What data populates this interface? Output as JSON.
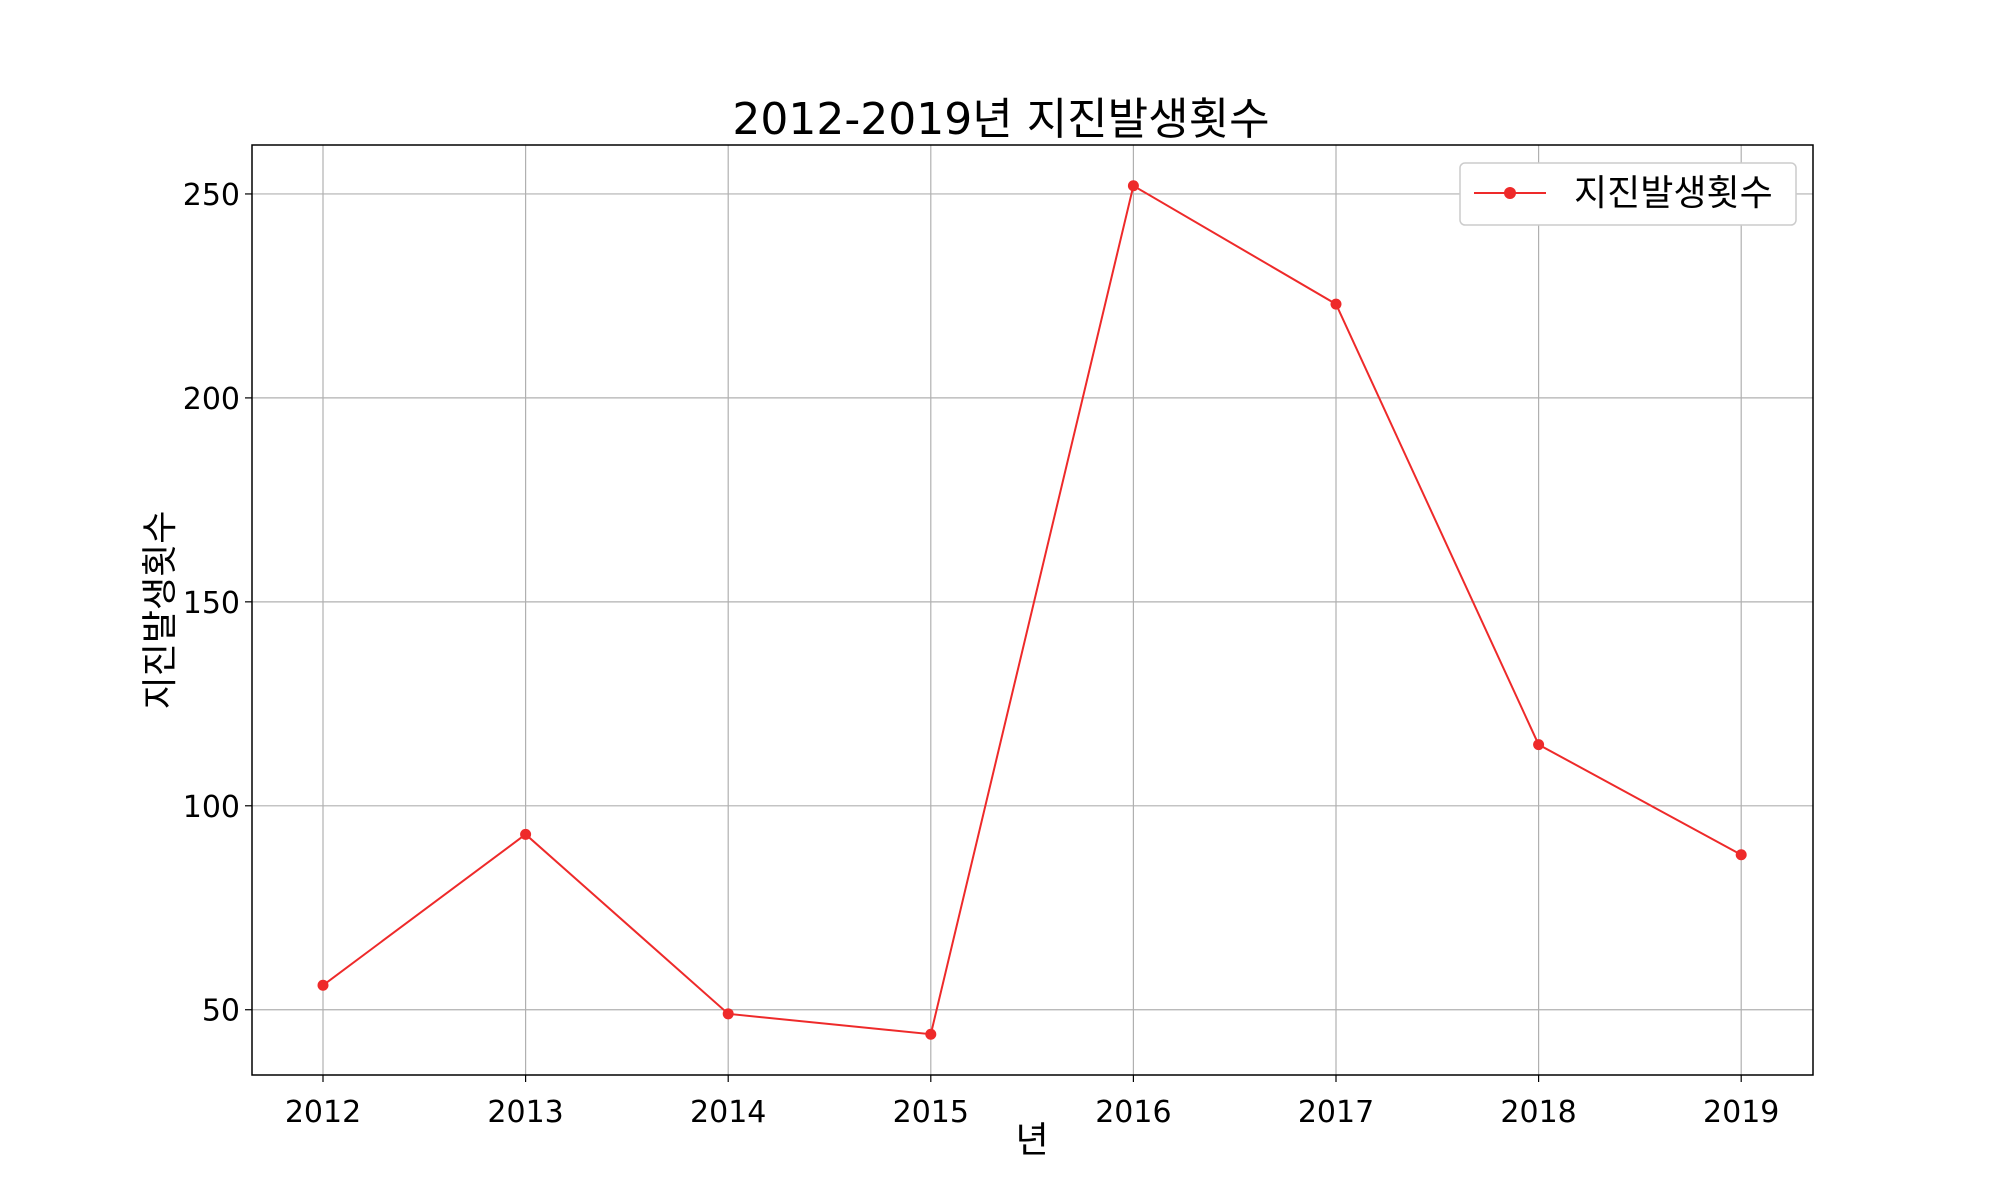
{
  "chart_data": {
    "type": "line",
    "title": "2012-2019년 지진발생횟수",
    "xlabel": "년",
    "ylabel": "지진발생횟수",
    "categories": [
      "2012",
      "2013",
      "2014",
      "2015",
      "2016",
      "2017",
      "2018",
      "2019"
    ],
    "series": [
      {
        "name": "지진발생횟수",
        "color": "#ee2a2a",
        "marker": "circle",
        "values": [
          56,
          93,
          49,
          44,
          252,
          223,
          115,
          88
        ]
      }
    ],
    "y_ticks": [
      50,
      100,
      150,
      200,
      250
    ],
    "ylim": [
      34,
      262
    ],
    "grid": true,
    "legend_position": "top-right"
  }
}
